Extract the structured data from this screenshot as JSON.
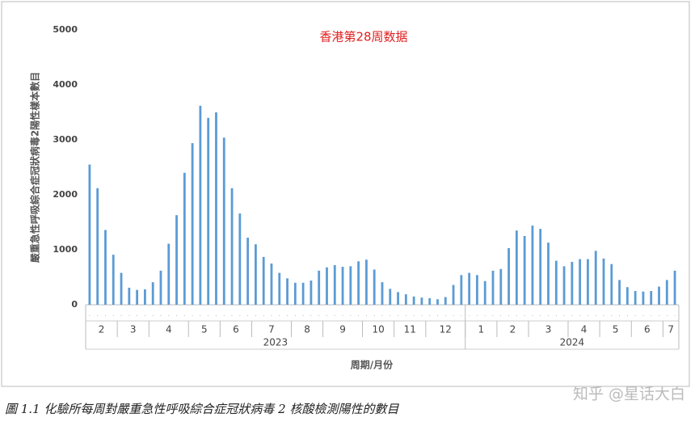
{
  "chart_data": {
    "type": "bar",
    "title": "香港第28周数据",
    "y_label": "嚴重急性呼吸綜合症冠狀病毒2陽性樣本數目",
    "x_label": "周期/月份",
    "caption": "圖 1.1 化驗所每周對嚴重急性呼吸綜合症冠狀病毒 2 核酸檢測陽性的數目",
    "watermark": "知乎 @星话大白",
    "color": "#5b9bd5",
    "ylim": [
      0,
      5000
    ],
    "yticks": [
      0,
      1000,
      2000,
      3000,
      4000,
      5000
    ],
    "grid": false,
    "categories": [
      "2",
      "2",
      "2",
      "2",
      "3",
      "3",
      "3",
      "3",
      "4",
      "4",
      "4",
      "4",
      "4",
      "5",
      "5",
      "5",
      "5",
      "6",
      "6",
      "6",
      "6",
      "7",
      "7",
      "7",
      "7",
      "7",
      "8",
      "8",
      "8",
      "8",
      "9",
      "9",
      "9",
      "9",
      "9",
      "10",
      "10",
      "10",
      "10",
      "11",
      "11",
      "11",
      "11",
      "12",
      "12",
      "12",
      "12",
      "12",
      "1",
      "1",
      "1",
      "1",
      "2",
      "2",
      "2",
      "2",
      "3",
      "3",
      "3",
      "3",
      "3",
      "4",
      "4",
      "4",
      "4",
      "5",
      "5",
      "5",
      "5",
      "6",
      "6",
      "6",
      "6",
      "7",
      "7"
    ],
    "years": [
      "2023",
      "2023",
      "2023",
      "2023",
      "2023",
      "2023",
      "2023",
      "2023",
      "2023",
      "2023",
      "2023",
      "2023",
      "2023",
      "2023",
      "2023",
      "2023",
      "2023",
      "2023",
      "2023",
      "2023",
      "2023",
      "2023",
      "2023",
      "2023",
      "2023",
      "2023",
      "2023",
      "2023",
      "2023",
      "2023",
      "2023",
      "2023",
      "2023",
      "2023",
      "2023",
      "2023",
      "2023",
      "2023",
      "2023",
      "2023",
      "2023",
      "2023",
      "2023",
      "2023",
      "2023",
      "2023",
      "2023",
      "2023",
      "2024",
      "2024",
      "2024",
      "2024",
      "2024",
      "2024",
      "2024",
      "2024",
      "2024",
      "2024",
      "2024",
      "2024",
      "2024",
      "2024",
      "2024",
      "2024",
      "2024",
      "2024",
      "2024",
      "2024",
      "2024",
      "2024",
      "2024",
      "2024",
      "2024",
      "2024",
      "2024"
    ],
    "values": [
      2550,
      2120,
      1360,
      910,
      580,
      310,
      270,
      280,
      410,
      620,
      1110,
      1630,
      2400,
      2940,
      3620,
      3400,
      3500,
      3040,
      2120,
      1660,
      1220,
      1100,
      870,
      750,
      580,
      480,
      400,
      400,
      440,
      620,
      680,
      720,
      690,
      700,
      790,
      820,
      640,
      410,
      290,
      230,
      190,
      150,
      130,
      120,
      100,
      140,
      360,
      540,
      580,
      540,
      430,
      620,
      650,
      1030,
      1350,
      1250,
      1440,
      1380,
      1130,
      800,
      700,
      780,
      830,
      830,
      980,
      840,
      740,
      450,
      320,
      250,
      240,
      250,
      330,
      450,
      620
    ]
  }
}
